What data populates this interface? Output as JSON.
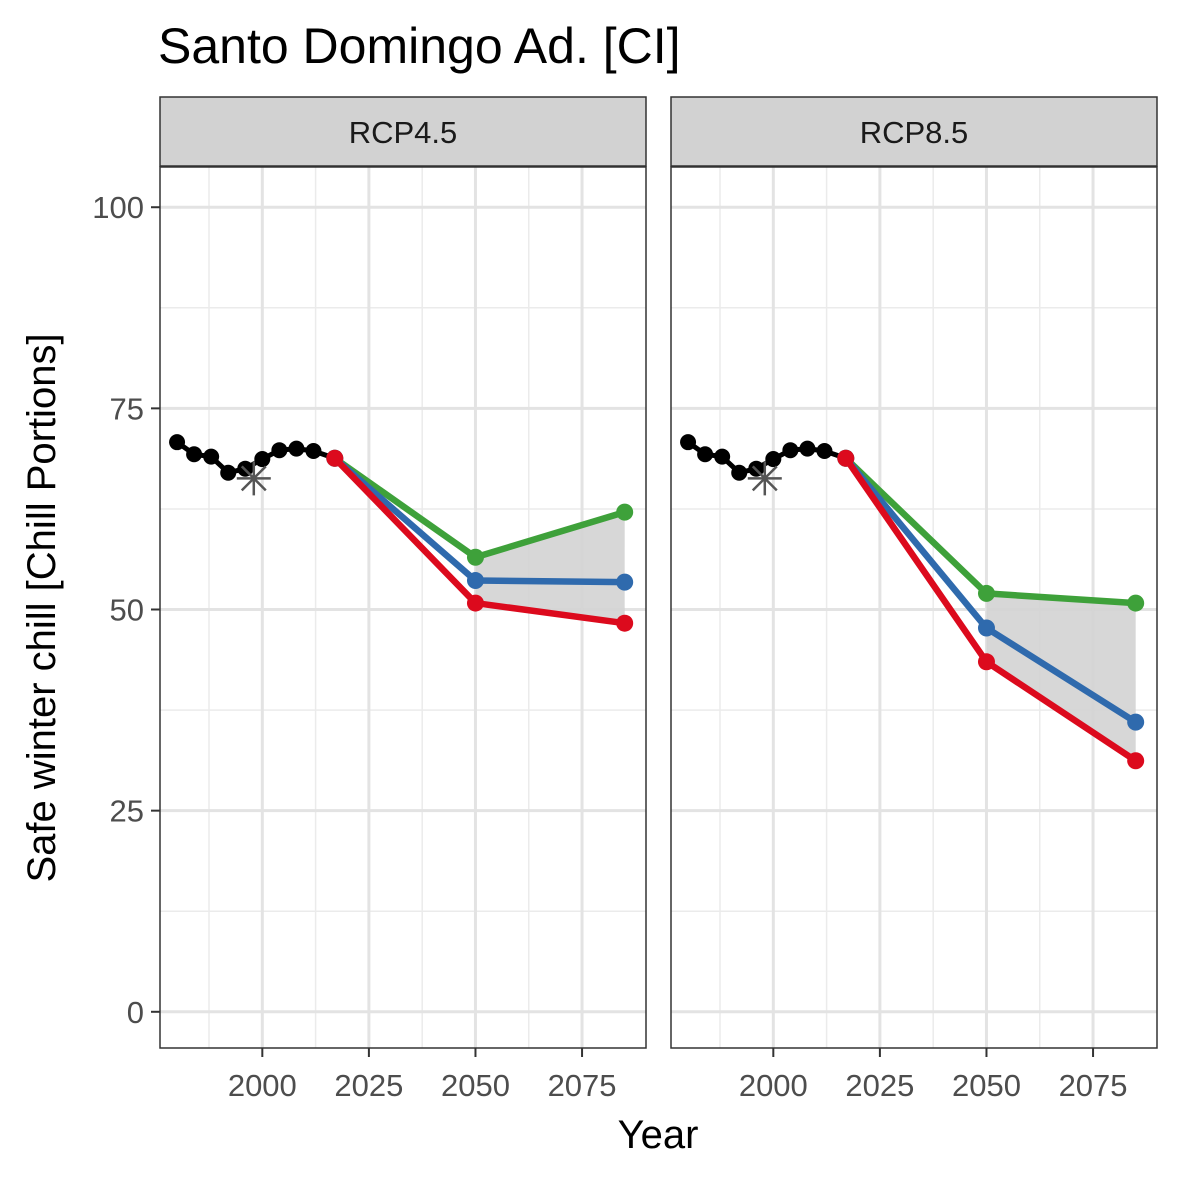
{
  "chart_data": {
    "type": "line",
    "title": "Santo Domingo Ad. [CI]",
    "xlabel": "Year",
    "ylabel": "Safe winter chill [Chill Portions]",
    "xlim": [
      1976,
      2090
    ],
    "ylim": [
      -4.5,
      105
    ],
    "x_ticks": [
      2000,
      2025,
      2050,
      2075
    ],
    "y_ticks": [
      0,
      25,
      50,
      75,
      100
    ],
    "grid": true,
    "legend": "none",
    "colors": {
      "historic": "#000000",
      "optimistic": "#3ea13a",
      "median": "#2f6aad",
      "pessimistic": "#dc0a1d",
      "band": "#d3d3d3",
      "marker": "#555555",
      "strip_fill": "#d2d2d2"
    },
    "panels": [
      {
        "label": "RCP4.5",
        "historic": {
          "x": [
            1980,
            1984,
            1988,
            1992,
            1996,
            2000,
            2004,
            2008,
            2012,
            2017
          ],
          "y": [
            70.8,
            69.3,
            69.0,
            67.0,
            67.5,
            68.7,
            69.8,
            70.0,
            69.7,
            68.8
          ]
        },
        "observed_marker": {
          "x": 1998,
          "y": 66.3
        },
        "series": [
          {
            "x": [
              2017,
              2050,
              2085
            ],
            "y": [
              68.8,
              56.5,
              62.1
            ]
          },
          {
            "x": [
              2017,
              2050,
              2085
            ],
            "y": [
              68.8,
              53.6,
              53.4
            ]
          },
          {
            "x": [
              2017,
              2050,
              2085
            ],
            "y": [
              68.8,
              50.8,
              48.3
            ]
          }
        ],
        "band": {
          "x": [
            2050,
            2085
          ],
          "upper": [
            56.5,
            62.1
          ],
          "lower": [
            50.8,
            48.3
          ]
        }
      },
      {
        "label": "RCP8.5",
        "historic": {
          "x": [
            1980,
            1984,
            1988,
            1992,
            1996,
            2000,
            2004,
            2008,
            2012,
            2017
          ],
          "y": [
            70.8,
            69.3,
            69.0,
            67.0,
            67.5,
            68.7,
            69.8,
            70.0,
            69.7,
            68.8
          ]
        },
        "observed_marker": {
          "x": 1998,
          "y": 66.3
        },
        "series": [
          {
            "x": [
              2017,
              2050,
              2085
            ],
            "y": [
              68.8,
              52.0,
              50.8
            ]
          },
          {
            "x": [
              2017,
              2050,
              2085
            ],
            "y": [
              68.8,
              47.7,
              36.0
            ]
          },
          {
            "x": [
              2017,
              2050,
              2085
            ],
            "y": [
              68.8,
              43.5,
              31.2
            ]
          }
        ],
        "band": {
          "x": [
            2050,
            2085
          ],
          "upper": [
            52.0,
            50.8
          ],
          "lower": [
            43.5,
            31.2
          ]
        }
      }
    ]
  }
}
